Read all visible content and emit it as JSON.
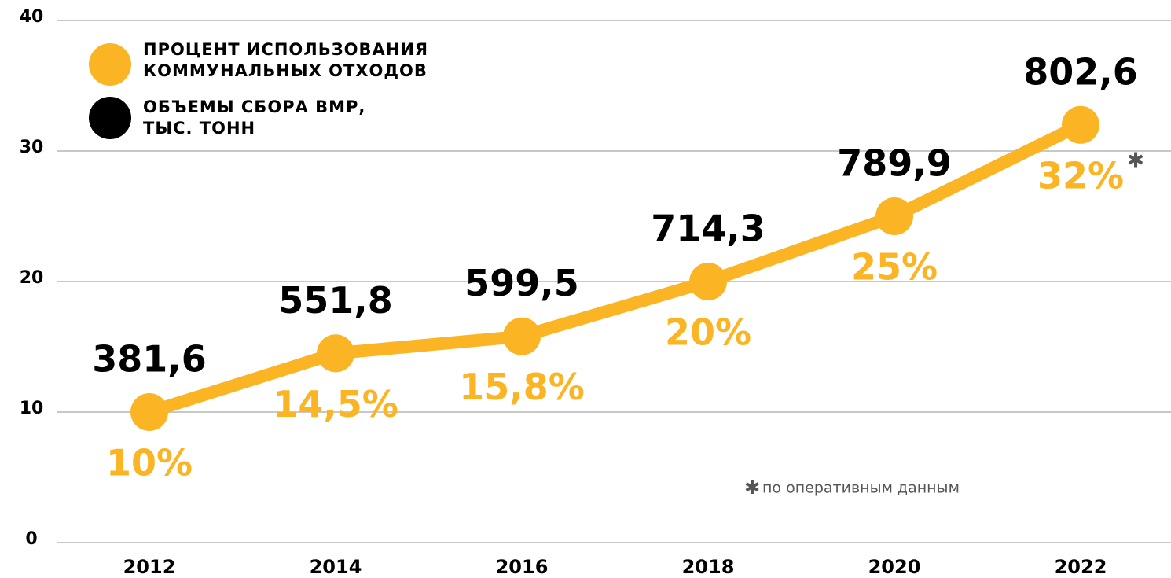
{
  "chart_data": {
    "type": "line",
    "categories": [
      "2012",
      "2014",
      "2016",
      "2018",
      "2020",
      "2022"
    ],
    "series": [
      {
        "name": "ПРОЦЕНТ ИСПОЛЬЗОВАНИЯ КОММУНАЛЬНЫХ ОТХОДОВ",
        "color": "#fbb524",
        "values": [
          10,
          14.5,
          15.8,
          20,
          25,
          32
        ],
        "value_labels": [
          "10%",
          "14,5%",
          "15,8%",
          "20%",
          "25%",
          "32%"
        ]
      },
      {
        "name": "ОБЪЕМЫ СБОРА ВМР, ТЫС. ТОНН",
        "color": "#000000",
        "values": [
          381.6,
          551.8,
          599.5,
          714.3,
          789.9,
          802.6
        ],
        "value_labels": [
          "381,6",
          "551,8",
          "599,5",
          "714,3",
          "789,9",
          "802,6"
        ]
      }
    ],
    "ylim": [
      0,
      40
    ],
    "yticks": [
      0,
      10,
      20,
      30,
      40
    ],
    "grid": true,
    "note_mark": "✱",
    "annotation": "по оперативным данным"
  }
}
